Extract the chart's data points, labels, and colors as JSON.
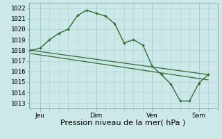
{
  "title": "",
  "xlabel": "Pression niveau de la mer( hPa )",
  "ylabel": "",
  "bg_color": "#cce8e8",
  "grid_color": "#b0d4d4",
  "line_color": "#2d6e2d",
  "ylim": [
    1012.5,
    1022.5
  ],
  "yticks": [
    1013,
    1014,
    1015,
    1016,
    1017,
    1018,
    1019,
    1020,
    1021,
    1022
  ],
  "xtick_labels": [
    "Jeu",
    "Dim",
    "Ven",
    "Sam"
  ],
  "xtick_positions": [
    0.5,
    3.5,
    6.5,
    9.0
  ],
  "xlim": [
    -0.1,
    10.0
  ],
  "line1_x": [
    0.0,
    0.5,
    1.0,
    1.5,
    2.0,
    2.5,
    3.0,
    3.5,
    4.0,
    4.5,
    5.0,
    5.5,
    6.0,
    6.5,
    7.0,
    7.5,
    8.0,
    8.5,
    9.0,
    9.5
  ],
  "line1_y": [
    1018.0,
    1018.2,
    1019.0,
    1019.6,
    1020.0,
    1021.3,
    1021.8,
    1021.5,
    1021.25,
    1020.5,
    1018.7,
    1019.0,
    1018.5,
    1016.5,
    1015.7,
    1014.8,
    1013.2,
    1013.2,
    1014.9,
    1015.7
  ],
  "line2_x": [
    0.0,
    9.5
  ],
  "line2_y": [
    1018.0,
    1015.7
  ],
  "line3_x": [
    0.0,
    9.5
  ],
  "line3_y": [
    1017.7,
    1015.2
  ],
  "vline_positions": [
    0.5,
    3.5,
    6.5,
    9.0
  ],
  "xlabel_fontsize": 8,
  "tick_fontsize": 6.5
}
